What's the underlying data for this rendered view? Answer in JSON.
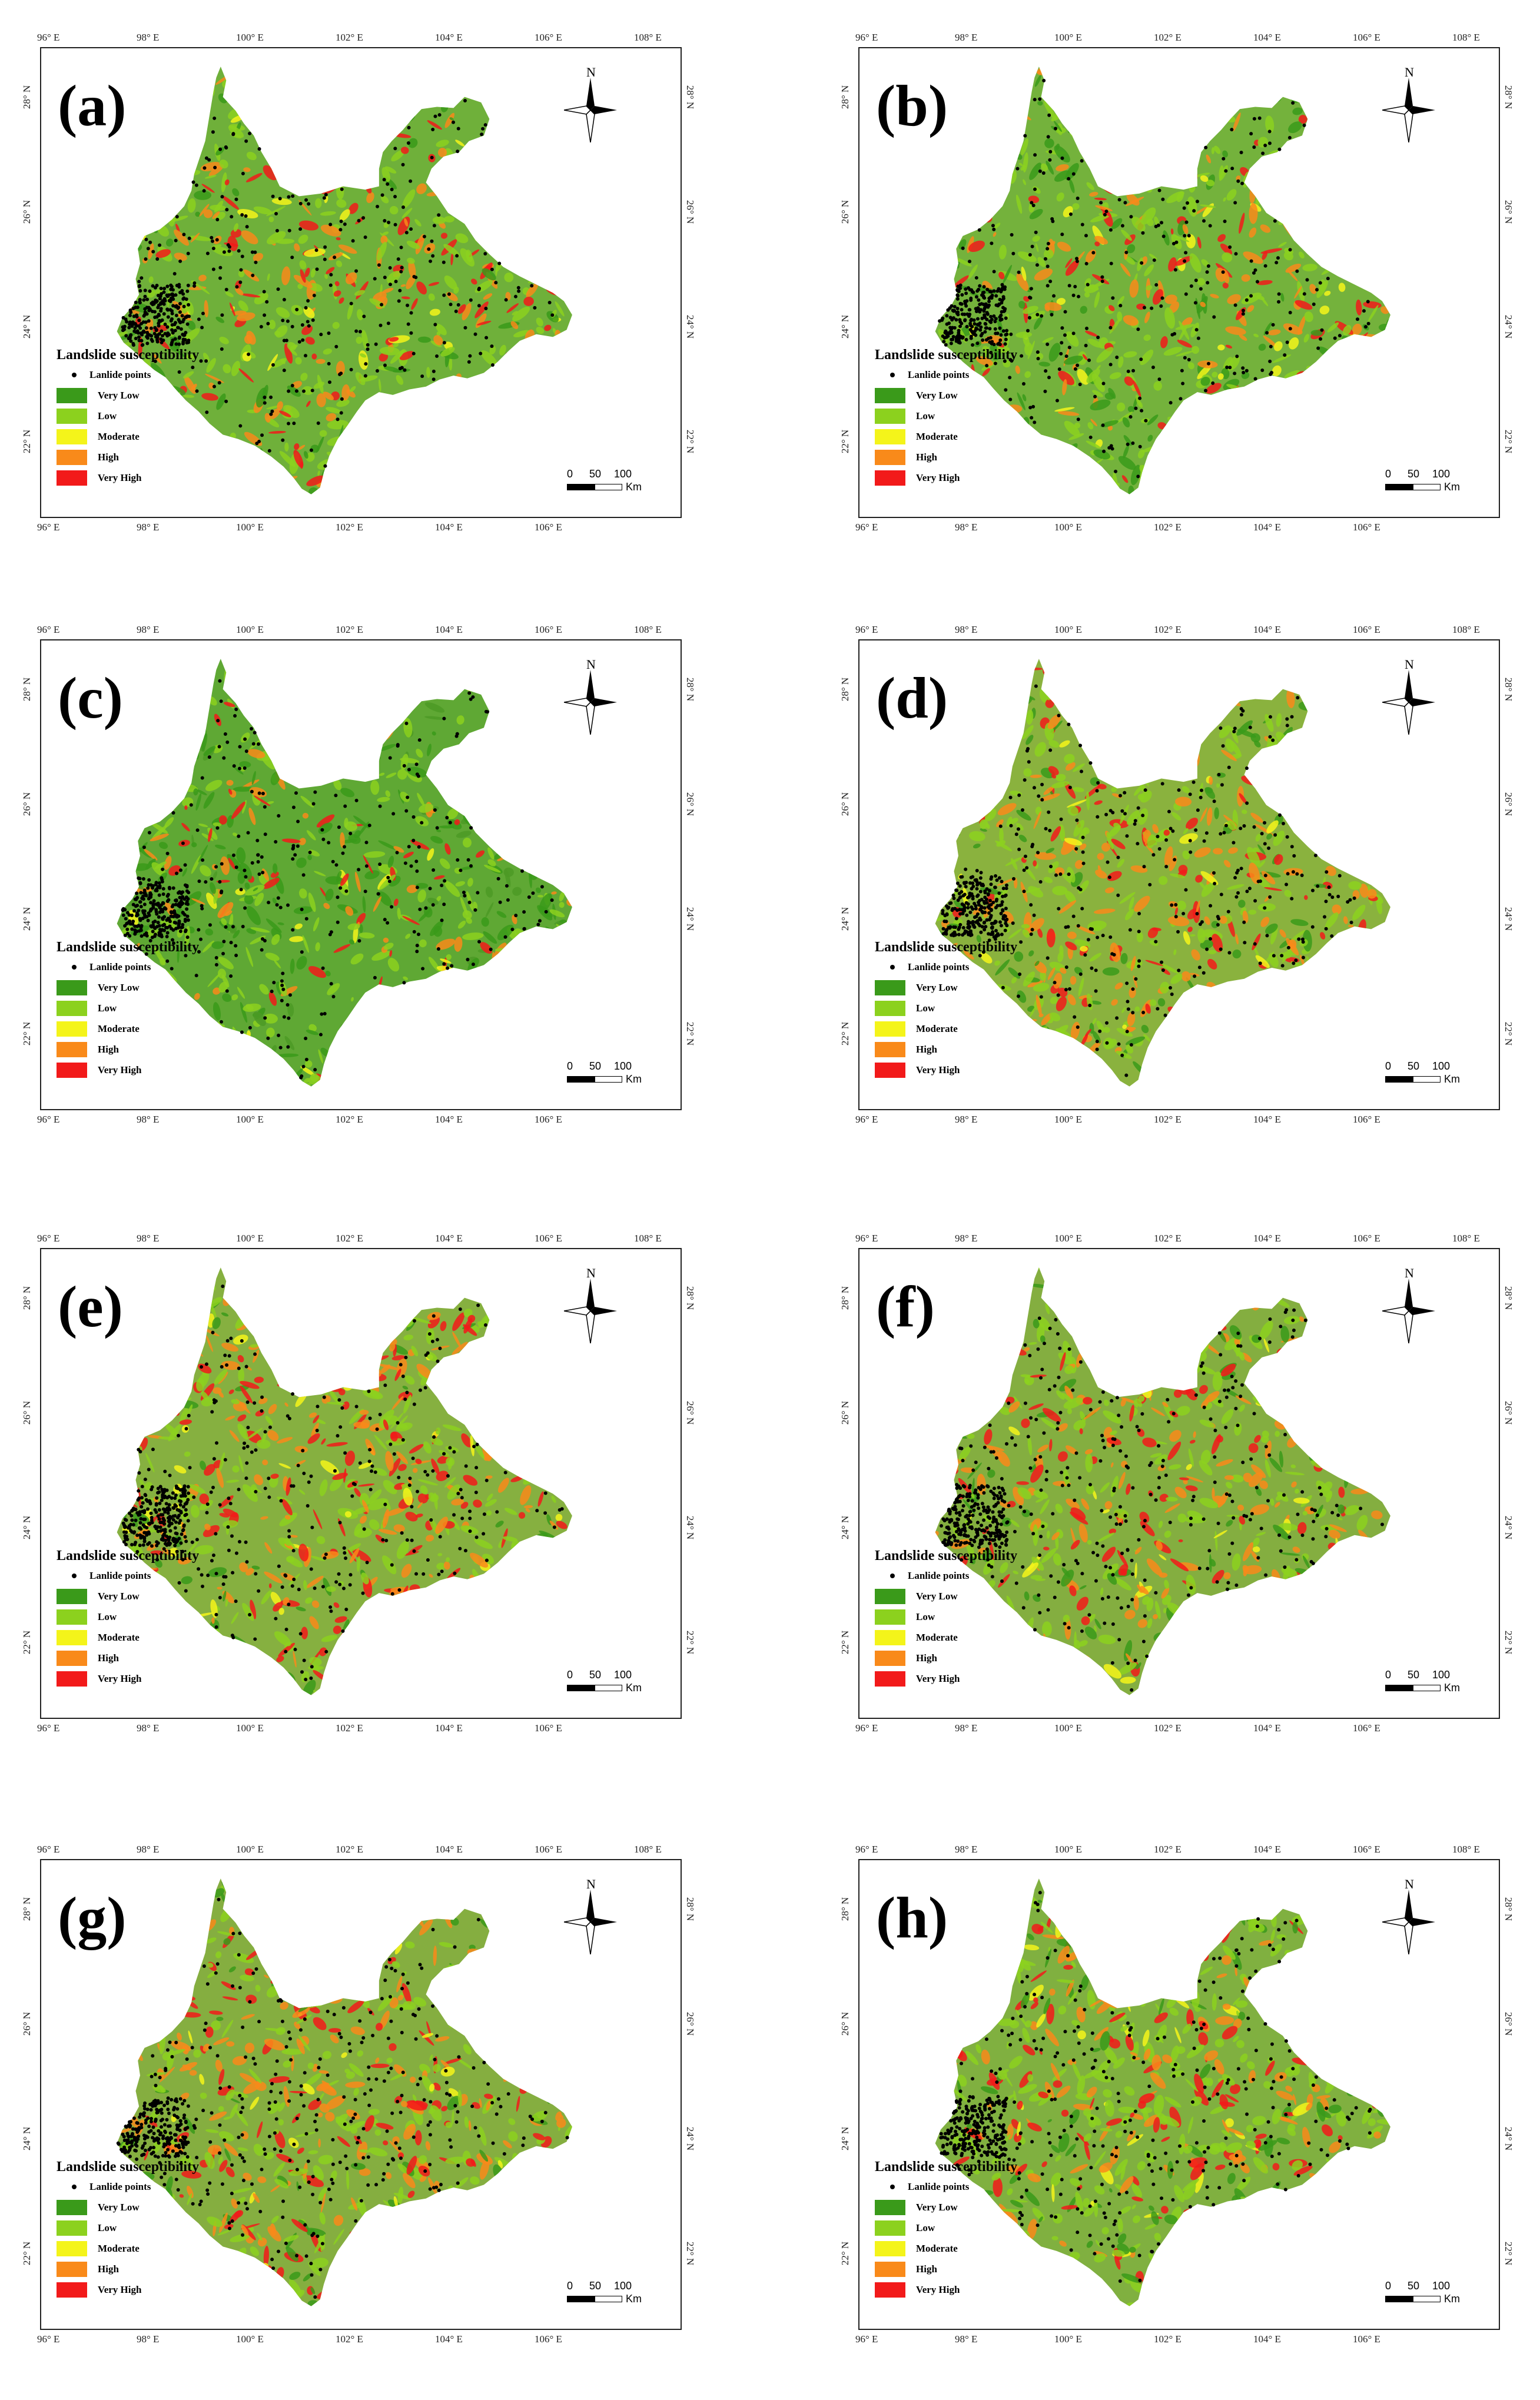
{
  "panels": [
    {
      "label": "(a)"
    },
    {
      "label": "(b)"
    },
    {
      "label": "(c)"
    },
    {
      "label": "(d)"
    },
    {
      "label": "(e)"
    },
    {
      "label": "(f)"
    },
    {
      "label": "(g)"
    },
    {
      "label": "(h)"
    }
  ],
  "axes": {
    "top_ticks": [
      "96° E",
      "98° E",
      "100° E",
      "102° E",
      "104° E",
      "106° E",
      "108° E"
    ],
    "bottom_ticks": [
      "96° E",
      "98° E",
      "100° E",
      "102° E",
      "104° E",
      "106° E"
    ],
    "lat_ticks": [
      "28° N",
      "26° N",
      "24° N",
      "22° N"
    ]
  },
  "north_arrow": {
    "label": "N",
    "icon": "north-arrow-icon"
  },
  "legend": {
    "title": "Landslide susceptibility",
    "points_label": "Lanlide points",
    "classes": [
      {
        "label": "Very Low",
        "color": "#3a9a1a"
      },
      {
        "label": "Low",
        "color": "#8cd11e"
      },
      {
        "label": "Moderate",
        "color": "#f4f41a"
      },
      {
        "label": "High",
        "color": "#f98a1a"
      },
      {
        "label": "Very High",
        "color": "#f21a1a"
      }
    ]
  },
  "scalebar": {
    "ticks": [
      "0",
      "50",
      "100"
    ],
    "unit": "Km"
  }
}
